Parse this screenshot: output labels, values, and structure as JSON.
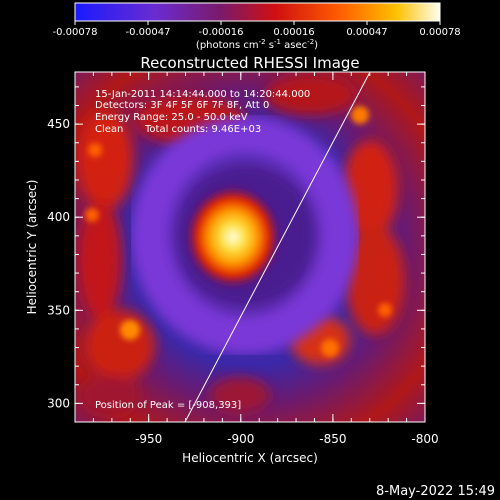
{
  "colorbar": {
    "ticks": [
      "-0.00078",
      "-0.00047",
      "-0.00016",
      "0.00016",
      "0.00047",
      "0.00078"
    ],
    "units_prefix": "(photons cm",
    "units_exp1": "-2",
    "units_mid": " s",
    "units_exp2": "-1",
    "units_mid2": " asec",
    "units_exp3": "-2",
    "units_suffix": ")"
  },
  "title": "Reconstructed RHESSI Image",
  "annotations": {
    "time_range": "15-Jan-2011 14:14:44.000 to 14:20:44.000",
    "detectors": "Detectors: 3F 4F 5F 6F 7F 8F, Att 0",
    "energy": "Energy Range: 25.0 - 50.0 keV",
    "clean": "Clean",
    "total_counts": "Total counts: 9.46E+03",
    "peak": "Position of Peak = [-908,393]"
  },
  "axes": {
    "xlabel": "Heliocentric X (arcsec)",
    "ylabel": "Heliocentric Y (arcsec)",
    "x_ticks": [
      "-950",
      "-900",
      "-850",
      "-800"
    ],
    "y_ticks": [
      "300",
      "350",
      "400",
      "450"
    ]
  },
  "footer_date": "8-May-2022 15:49"
}
